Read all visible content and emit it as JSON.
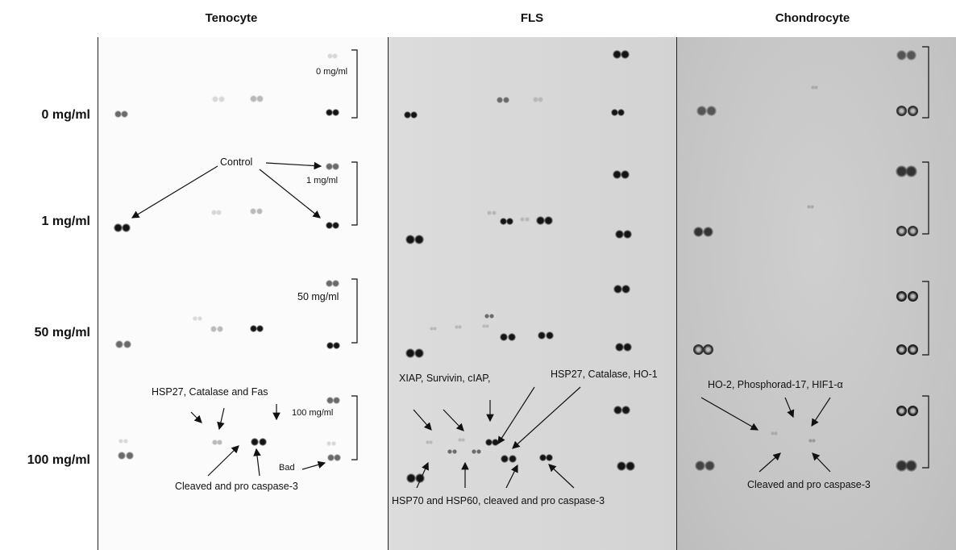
{
  "columns": {
    "tenocyte": "Tenocyte",
    "fls": "FLS",
    "chondrocyte": "Chondrocyte"
  },
  "rows": {
    "r0": "0 mg/ml",
    "r1": "1 mg/ml",
    "r50": "50 mg/ml",
    "r100": "100 mg/ml"
  },
  "tenocyte_annotations": {
    "bracket_0": "0 mg/ml",
    "control": "Control",
    "bracket_1": "1 mg/ml",
    "bracket_50": "50 mg/ml",
    "hsp27_catalase_fas": "HSP27, Catalase and Fas",
    "bracket_100": "100 mg/ml",
    "bad": "Bad",
    "cleaved_pro_casp3": "Cleaved and pro caspase-3"
  },
  "fls_annotations": {
    "xiap": "XIAP, Survivin, cIAP,",
    "hsp27_catalase_ho1": "HSP27, Catalase, HO-1",
    "hsp70_hsp60": "HSP70 and HSP60, cleaved and pro caspase-3"
  },
  "chondrocyte_annotations": {
    "ho2": "HO-2, Phosphorad-17, HIF1-α",
    "cleaved_pro_casp3": "Cleaved and pro caspase-3"
  },
  "colors": {
    "tenocyte_bg": "#fbfbfb",
    "fls_bg": "#d7d7d7",
    "chondrocyte_bg": "#c9c9c9",
    "spot_dark": "#141414"
  }
}
